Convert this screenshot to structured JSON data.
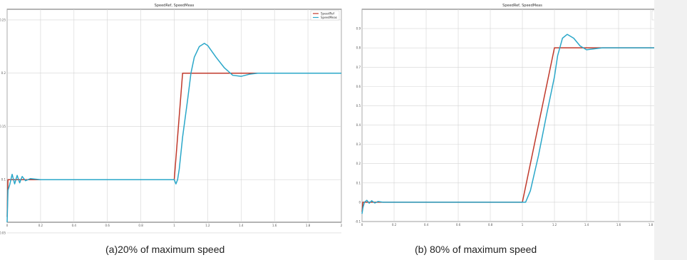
{
  "figure": {
    "caption_a": "(a)20% of maximum speed",
    "caption_b": "(b) 80% of maximum speed"
  },
  "chart_data": [
    {
      "type": "line",
      "title": "SpeedRef, SpeedMeas",
      "xlabel": "",
      "ylabel": "",
      "xlim": [
        0,
        2
      ],
      "ylim": [
        0.06,
        0.26
      ],
      "xticks": [
        "0",
        "0.2",
        "0.4",
        "0.6",
        "0.8",
        "1",
        "1.2",
        "1.4",
        "1.6",
        "1.8",
        "2"
      ],
      "yticks": [
        "0.25",
        "0.2",
        "0.15",
        "0.1",
        "0.05"
      ],
      "grid": true,
      "legend": "top-right",
      "series": [
        {
          "name": "SpeedRef",
          "color": "#c0392b",
          "x": [
            0,
            0.005,
            0.008,
            1.0,
            1.05,
            2.0
          ],
          "y": [
            0.065,
            0.1,
            0.1,
            0.1,
            0.2,
            0.2
          ]
        },
        {
          "name": "SpeedMeas",
          "color": "#2aa7c9",
          "x": [
            0,
            0.005,
            0.015,
            0.03,
            0.045,
            0.06,
            0.075,
            0.09,
            0.11,
            0.14,
            0.2,
            1.0,
            1.01,
            1.02,
            1.03,
            1.05,
            1.08,
            1.1,
            1.12,
            1.15,
            1.18,
            1.2,
            1.25,
            1.3,
            1.35,
            1.4,
            1.45,
            1.5,
            1.6,
            2.0
          ],
          "y": [
            0.06,
            0.09,
            0.095,
            0.105,
            0.096,
            0.104,
            0.097,
            0.103,
            0.099,
            0.101,
            0.1,
            0.1,
            0.096,
            0.1,
            0.11,
            0.14,
            0.175,
            0.2,
            0.215,
            0.225,
            0.228,
            0.226,
            0.215,
            0.205,
            0.198,
            0.197,
            0.199,
            0.2,
            0.2,
            0.2
          ]
        }
      ]
    },
    {
      "type": "line",
      "title": "SpeedRef, SpeedMeas",
      "xlabel": "",
      "ylabel": "",
      "xlim": [
        0,
        2
      ],
      "ylim": [
        -0.1,
        1.0
      ],
      "xticks": [
        "0",
        "0.2",
        "0.4",
        "0.6",
        "0.8",
        "1",
        "1.2",
        "1.4",
        "1.6",
        "1.8",
        "2"
      ],
      "yticks": [
        "0.9",
        "0.8",
        "0.7",
        "0.6",
        "0.5",
        "0.4",
        "0.3",
        "0.2",
        "0.1",
        "0",
        "-0.1"
      ],
      "grid": true,
      "legend": "top-right",
      "series": [
        {
          "name": "SpeedRef",
          "color": "#c0392b",
          "x": [
            0,
            0.005,
            0.01,
            1.0,
            1.2,
            2.0
          ],
          "y": [
            -0.05,
            0.0,
            0.0,
            0.0,
            0.8,
            0.8
          ]
        },
        {
          "name": "SpeedMeas",
          "color": "#2aa7c9",
          "x": [
            0,
            0.005,
            0.015,
            0.03,
            0.045,
            0.06,
            0.08,
            0.1,
            0.13,
            0.2,
            1.0,
            1.02,
            1.05,
            1.1,
            1.15,
            1.2,
            1.22,
            1.25,
            1.28,
            1.32,
            1.36,
            1.4,
            1.45,
            1.5,
            1.55,
            1.6,
            2.0
          ],
          "y": [
            -0.06,
            -0.03,
            0.0,
            0.01,
            -0.005,
            0.008,
            -0.004,
            0.004,
            0.0,
            0.0,
            0.0,
            0.0,
            0.06,
            0.24,
            0.45,
            0.65,
            0.76,
            0.85,
            0.87,
            0.85,
            0.81,
            0.79,
            0.795,
            0.8,
            0.8,
            0.8,
            0.8
          ]
        }
      ]
    }
  ]
}
